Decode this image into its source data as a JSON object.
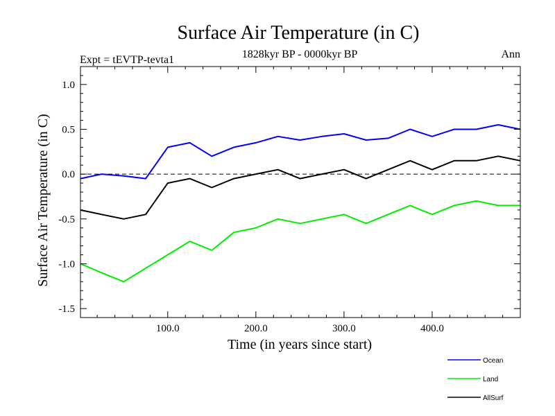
{
  "chart_data": {
    "type": "line",
    "title": "Surface Air Temperature (in C)",
    "subtitle": "1828kyr BP - 0000kyr BP",
    "left_label": "Expt = tEVTP-tevta1",
    "right_label": "Ann",
    "xlabel": "Time (in years since start)",
    "ylabel": "Surface Air Temperature (in C)",
    "xlim": [
      1,
      500
    ],
    "ylim": [
      -1.6,
      1.2
    ],
    "x_ticks": [
      100,
      200,
      300,
      400
    ],
    "x_tick_labels": [
      "100.0",
      "200.0",
      "300.0",
      "400.0"
    ],
    "y_ticks": [
      -1.5,
      -1.0,
      -0.5,
      0.0,
      0.5,
      1.0
    ],
    "y_tick_labels": [
      "-1.5",
      "-1.0",
      "-0.5",
      "0.0",
      "0.5",
      "1.0"
    ],
    "reference_line": 0.0,
    "legend_position": "bottom-right, below plot",
    "series": [
      {
        "name": "Ocean",
        "color": "#0000ff",
        "x": [
          1,
          25,
          50,
          75,
          100,
          125,
          150,
          175,
          200,
          225,
          250,
          275,
          300,
          325,
          350,
          375,
          400,
          425,
          450,
          475,
          500
        ],
        "values": [
          -0.05,
          0.0,
          -0.02,
          -0.05,
          0.3,
          0.35,
          0.2,
          0.3,
          0.35,
          0.42,
          0.38,
          0.42,
          0.45,
          0.38,
          0.4,
          0.5,
          0.42,
          0.5,
          0.5,
          0.55,
          0.5
        ]
      },
      {
        "name": "Land",
        "color": "#00ee00",
        "x": [
          1,
          25,
          50,
          75,
          100,
          125,
          150,
          175,
          200,
          225,
          250,
          275,
          300,
          325,
          350,
          375,
          400,
          425,
          450,
          475,
          500
        ],
        "values": [
          -1.0,
          -1.1,
          -1.2,
          -1.05,
          -0.9,
          -0.75,
          -0.85,
          -0.65,
          -0.6,
          -0.5,
          -0.55,
          -0.5,
          -0.45,
          -0.55,
          -0.45,
          -0.35,
          -0.45,
          -0.35,
          -0.3,
          -0.35,
          -0.35
        ]
      },
      {
        "name": "AllSurf",
        "color": "#000000",
        "x": [
          1,
          25,
          50,
          75,
          100,
          125,
          150,
          175,
          200,
          225,
          250,
          275,
          300,
          325,
          350,
          375,
          400,
          425,
          450,
          475,
          500
        ],
        "values": [
          -0.4,
          -0.45,
          -0.5,
          -0.45,
          -0.1,
          -0.05,
          -0.15,
          -0.05,
          0.0,
          0.05,
          -0.05,
          0.0,
          0.05,
          -0.05,
          0.05,
          0.15,
          0.05,
          0.15,
          0.15,
          0.2,
          0.15
        ]
      }
    ]
  }
}
